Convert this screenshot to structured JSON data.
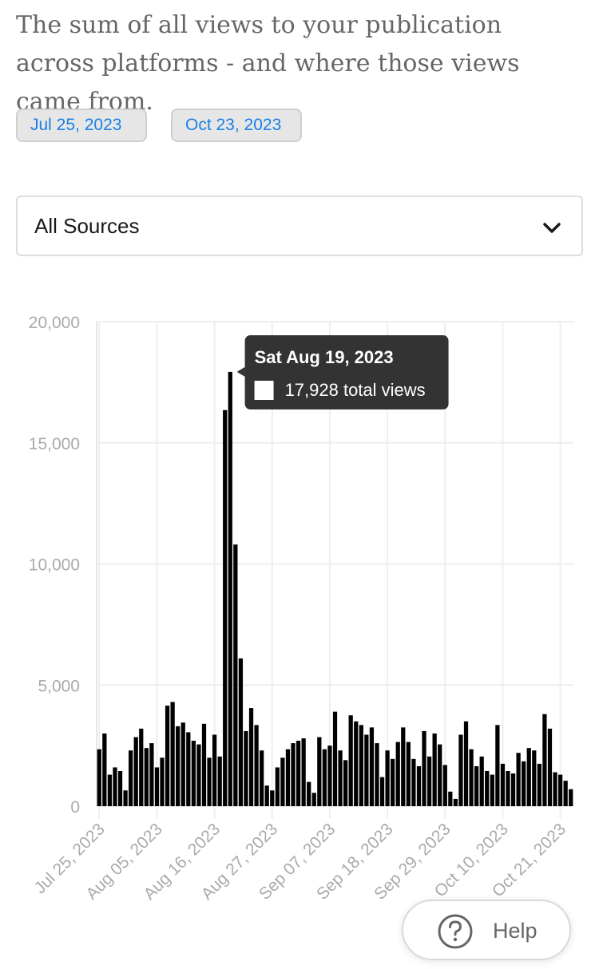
{
  "description": "The sum of all views to your publication across platforms - and where those views came from.",
  "date_range": {
    "start": "Jul 25, 2023",
    "end": "Oct 23, 2023"
  },
  "source_select": {
    "value": "All Sources",
    "icon": "chevron-down-icon"
  },
  "chart_data": {
    "type": "bar",
    "x_label": "",
    "y_label": "",
    "ylim": [
      0,
      20000
    ],
    "y_ticks": [
      "20,000",
      "15,000",
      "10,000",
      "5,000",
      "0"
    ],
    "x_ticks": [
      "Jul 25, 2023",
      "Aug 05, 2023",
      "Aug 16, 2023",
      "Aug 27, 2023",
      "Sep 07, 2023",
      "Sep 18, 2023",
      "Sep 29, 2023",
      "Oct 10, 2023",
      "Oct 21, 2023"
    ],
    "grid": true,
    "bar_color": "#000000",
    "start_date": "2023-07-25",
    "values": [
      2350,
      3000,
      1300,
      1600,
      1450,
      650,
      2300,
      2850,
      3200,
      2400,
      2600,
      1600,
      2000,
      4150,
      4300,
      3300,
      3450,
      3050,
      2700,
      2550,
      3400,
      2000,
      2950,
      2050,
      16350,
      17928,
      10800,
      6100,
      3100,
      4050,
      3350,
      2300,
      850,
      650,
      1600,
      2000,
      2350,
      2600,
      2700,
      2800,
      1000,
      550,
      2850,
      2350,
      2500,
      3900,
      2300,
      1900,
      3750,
      3500,
      3350,
      2950,
      3250,
      2600,
      1200,
      2300,
      1950,
      2650,
      3250,
      2650,
      1950,
      1650,
      3100,
      2050,
      3000,
      2550,
      1700,
      600,
      300,
      2950,
      3500,
      2350,
      1650,
      2050,
      1450,
      1300,
      3350,
      1750,
      1450,
      1350,
      2200,
      1850,
      2400,
      2300,
      1750,
      3800,
      3200,
      1400,
      1300,
      1050,
      700
    ],
    "tooltip": {
      "title": "Sat Aug 19, 2023",
      "value": "17,928",
      "label": "total views"
    }
  },
  "help": {
    "label": "Help",
    "icon": "question-circle-icon"
  }
}
